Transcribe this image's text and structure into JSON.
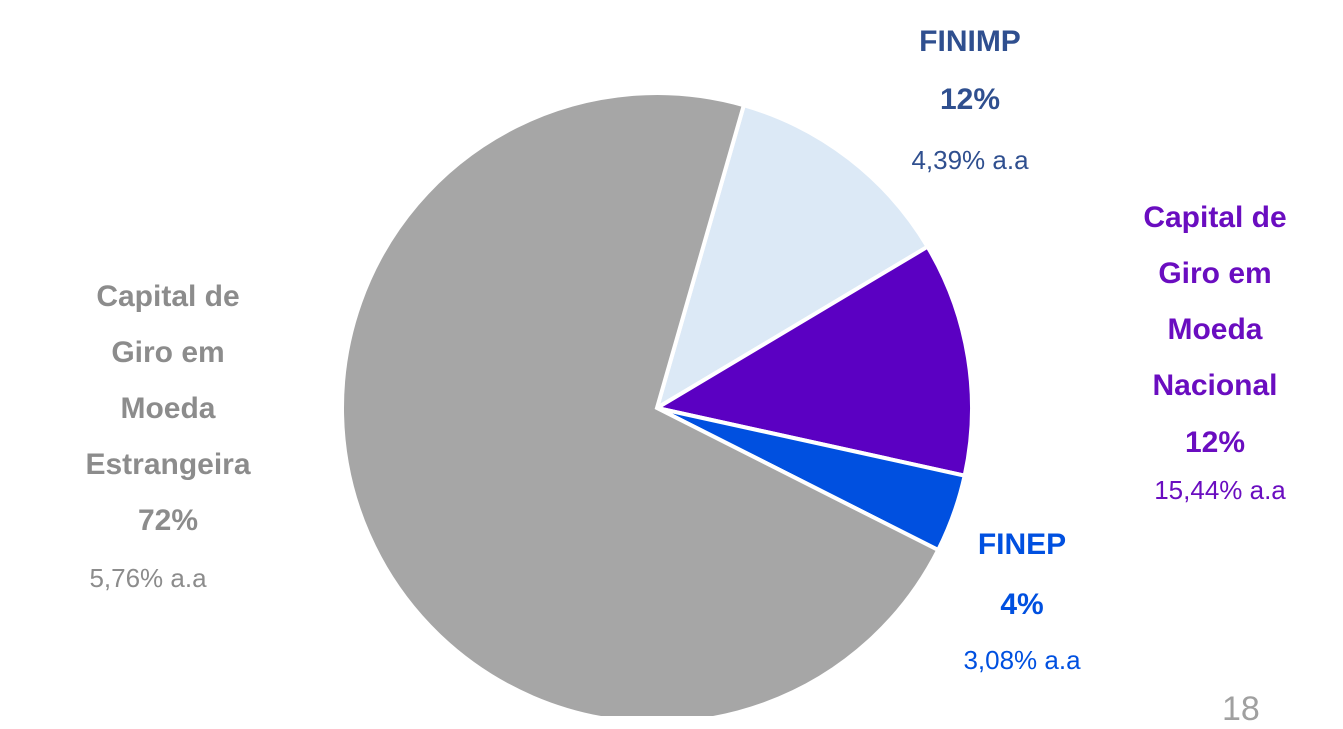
{
  "chart_data": {
    "type": "pie",
    "categories": [
      "FINIMP",
      "Capital de Giro em Moeda Nacional",
      "FINEP",
      "Capital de Giro em Moeda Estrangeira"
    ],
    "values": [
      12,
      12,
      4,
      72
    ],
    "value_labels": [
      "12%",
      "12%",
      "4%",
      "72%"
    ],
    "rate_labels": [
      "4,39% a.a",
      "15,44% a.a",
      "3,08% a.a",
      "5,76% a.a"
    ],
    "colors": [
      "#dce9f6",
      "#5b00c2",
      "#0050e0",
      "#a6a6a6"
    ],
    "label_colors": [
      "#2f4f8f",
      "#6a0dc0",
      "#0050e0",
      "#8c8c8c"
    ]
  },
  "page_number": "18"
}
